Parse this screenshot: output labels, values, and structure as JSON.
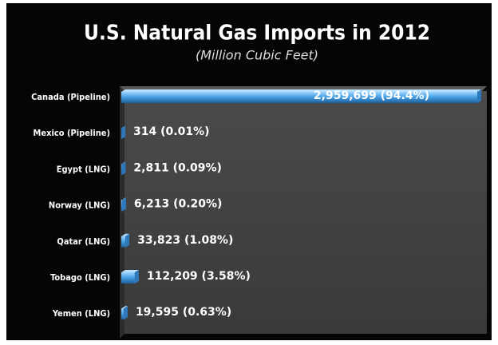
{
  "chart_data": {
    "type": "bar",
    "orientation": "horizontal",
    "title": "U.S. Natural Gas Imports in 2012",
    "subtitle": "(Million Cubic Feet)",
    "categories": [
      "Canada (Pipeline)",
      "Mexico (Pipeline)",
      "Egypt (LNG)",
      "Norway (LNG)",
      "Qatar (LNG)",
      "Tobago (LNG)",
      "Yemen (LNG)"
    ],
    "values": [
      2959699,
      314,
      2811,
      6213,
      33823,
      112209,
      19595
    ],
    "value_labels": [
      "2,959,699 (94.4%)",
      "314 (0.01%)",
      "2,811 (0.09%)",
      "6,213 (0.20%)",
      "33,823 (1.08%)",
      "112,209 (3.58%)",
      "19,595 (0.63%)"
    ],
    "color": "#4aa3e6"
  }
}
